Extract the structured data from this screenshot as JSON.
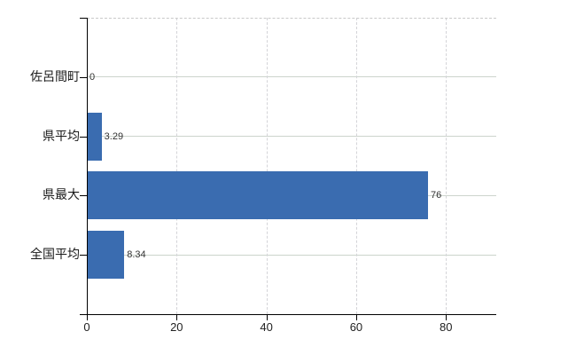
{
  "chart_data": {
    "type": "bar",
    "orientation": "horizontal",
    "title": "",
    "xlabel": "",
    "ylabel": "",
    "categories": [
      "佐呂間町",
      "県平均",
      "県最大",
      "全国平均"
    ],
    "values": [
      0,
      3.29,
      76,
      8.34
    ],
    "value_labels": [
      "0",
      "3.29",
      "76",
      "8.34"
    ],
    "x_ticks": [
      0,
      20,
      40,
      60,
      80
    ],
    "x_tick_labels": [
      "0",
      "20",
      "40",
      "60",
      "80"
    ],
    "xlim": [
      0,
      91.2
    ],
    "grid": true,
    "legend": false,
    "colors": {
      "bar": "#3a6cb0",
      "axis": "#000000",
      "h_gridline": "#ccd4cc",
      "v_gridline": "#d4d4d8",
      "top_border": "#c9c9c9",
      "category_label": "#1a1a1a",
      "value_label": "#333333",
      "x_tick_label": "#222222",
      "background": "#ffffff"
    }
  }
}
